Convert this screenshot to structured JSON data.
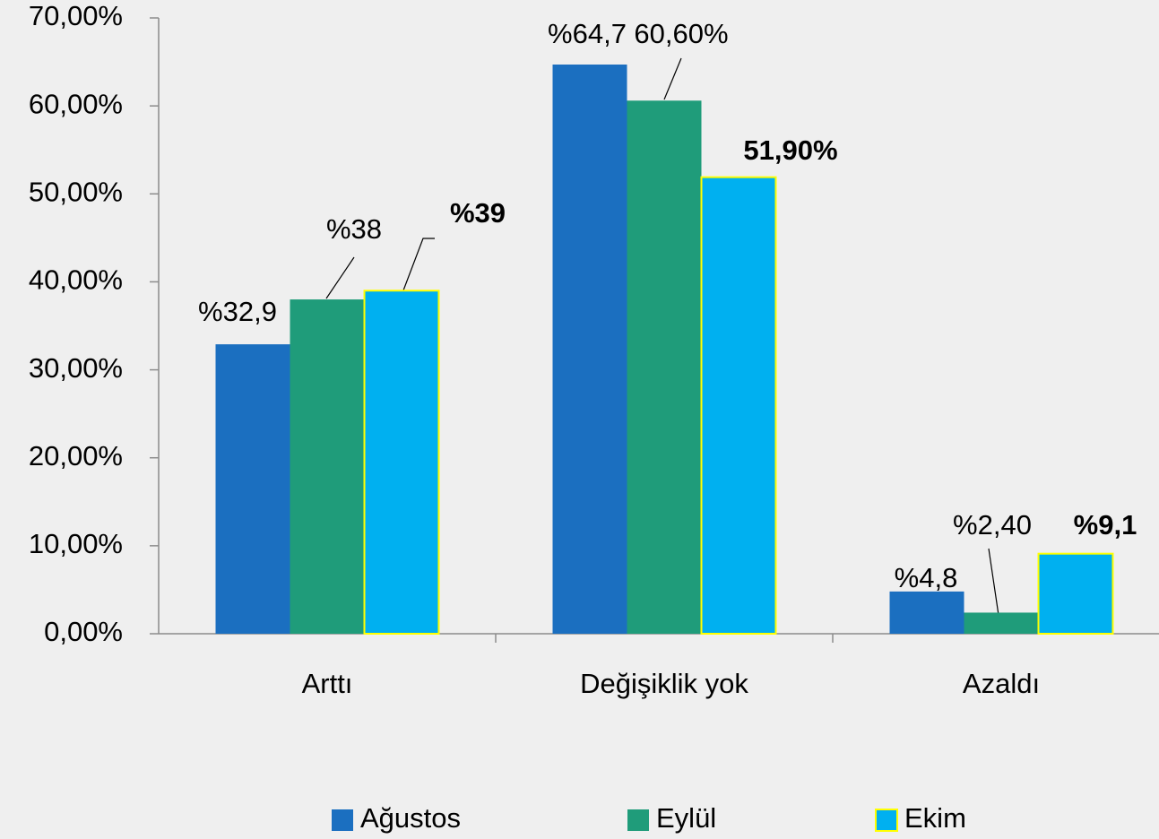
{
  "chart_data": {
    "type": "bar",
    "categories": [
      "Arttı",
      "Değişiklik yok",
      "Azaldı"
    ],
    "series": [
      {
        "name": "Ağustos",
        "color": "#1b6fc0",
        "values": [
          32.9,
          64.7,
          4.8
        ],
        "value_labels": [
          "%32,9",
          "%64,7",
          "%4,8"
        ]
      },
      {
        "name": "Eylül",
        "color": "#1f9c7a",
        "values": [
          38,
          60.6,
          2.4
        ],
        "value_labels": [
          "%38",
          "60,60%",
          "%2,40"
        ]
      },
      {
        "name": "Ekim",
        "color": "#00b0f0",
        "edge_color": "#ffff00",
        "values": [
          39,
          51.9,
          9.1
        ],
        "value_labels": [
          "%39",
          "51,90%",
          "%9,1"
        ]
      }
    ],
    "ylim": [
      0,
      70
    ],
    "yticks": [
      {
        "value": 0,
        "label": "0,00%"
      },
      {
        "value": 10,
        "label": "10,00%"
      },
      {
        "value": 20,
        "label": "20,00%"
      },
      {
        "value": 30,
        "label": "30,00%"
      },
      {
        "value": 40,
        "label": "40,00%"
      },
      {
        "value": 50,
        "label": "50,00%"
      },
      {
        "value": 60,
        "label": "60,00%"
      },
      {
        "value": 70,
        "label": "70,00%"
      }
    ],
    "legend": "bottom"
  }
}
